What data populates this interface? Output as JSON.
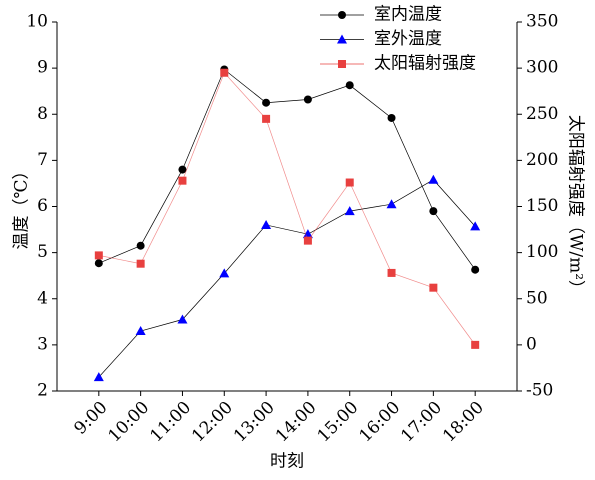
{
  "chart_data": {
    "type": "line",
    "categories": [
      "9:00",
      "10:00",
      "11:00",
      "12:00",
      "13:00",
      "14:00",
      "15:00",
      "16:00",
      "17:00",
      "18:00"
    ],
    "series": [
      {
        "name": "室内温度",
        "color": "#000000",
        "marker": "circle",
        "values": [
          4.77,
          5.15,
          6.8,
          8.97,
          8.25,
          8.32,
          8.63,
          7.92,
          5.9,
          4.63
        ]
      },
      {
        "name": "室外温度",
        "color": "#0000ff",
        "marker": "triangle",
        "values": [
          2.3,
          3.3,
          3.55,
          4.55,
          5.6,
          5.4,
          5.9,
          6.05,
          6.58,
          5.57
        ]
      },
      {
        "name": "太阳辐射强度",
        "color": "#e8403f",
        "marker": "square",
        "axis": "y2",
        "values": [
          97,
          88,
          178,
          295,
          245,
          113,
          176,
          78,
          62,
          0
        ]
      }
    ],
    "xlabel": "时刻",
    "ylabel": "温度（℃）",
    "y2label": "太阳辐射强度（W/m²）",
    "ylim": [
      2,
      10
    ],
    "yticks": [
      2,
      3,
      4,
      5,
      6,
      7,
      8,
      9,
      10
    ],
    "y2lim": [
      -50,
      350
    ],
    "y2ticks": [
      -50,
      0,
      50,
      100,
      150,
      200,
      250,
      300,
      350
    ],
    "legend": "upper right"
  }
}
